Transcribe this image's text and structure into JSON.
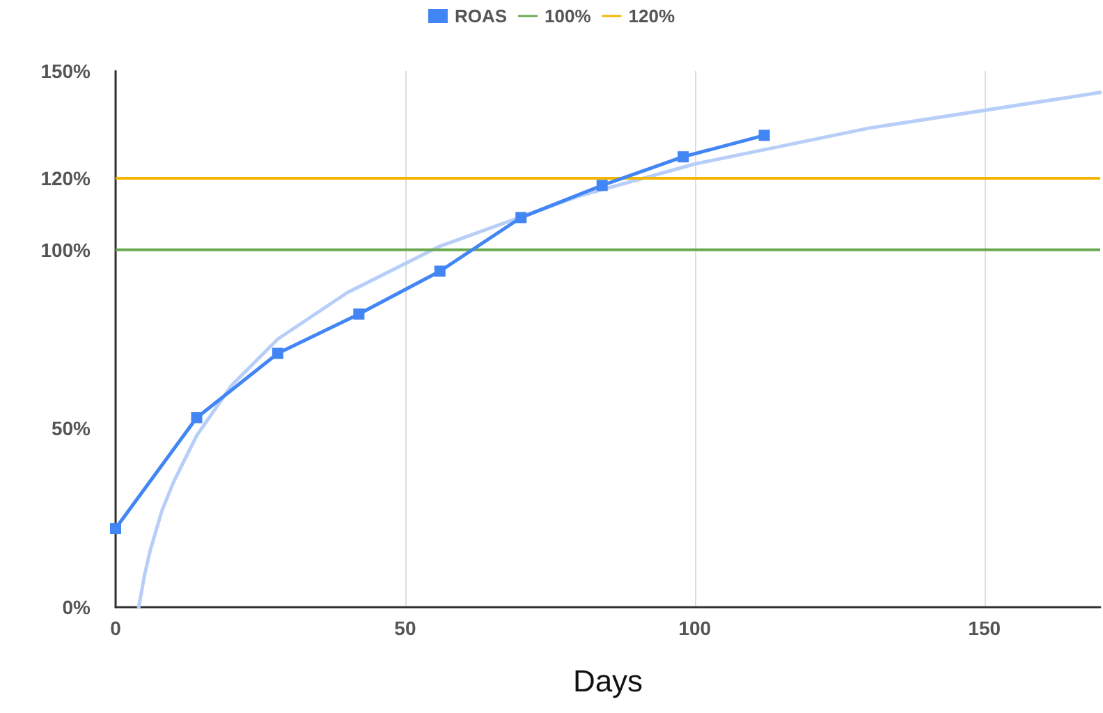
{
  "chart_data": {
    "type": "line",
    "xlabel": "Days",
    "x": [
      0,
      14,
      28,
      42,
      56,
      70,
      84,
      98,
      112
    ],
    "series": [
      {
        "name": "ROAS",
        "color": "#4285f4",
        "values": [
          22,
          53,
          71,
          82,
          94,
          109,
          118,
          126,
          132
        ],
        "marker": "square"
      },
      {
        "type": "line",
        "color": "#b7cff8",
        "marker": "none",
        "x": [
          4,
          5,
          6,
          8,
          10,
          14,
          20,
          28,
          40,
          56,
          80,
          100,
          130,
          170
        ],
        "values": [
          0,
          9,
          16,
          27,
          35,
          48,
          62,
          75,
          88,
          101,
          115,
          124,
          134,
          144
        ]
      }
    ],
    "ref_lines": [
      {
        "axis": "y",
        "value": 100,
        "label": "100%",
        "color": "#6aa84f"
      },
      {
        "axis": "y",
        "value": 120,
        "label": "120%",
        "color": "#f4b400"
      }
    ],
    "xlim": [
      0,
      170
    ],
    "xticks": [
      0,
      50,
      100,
      150
    ],
    "ylim": [
      0,
      150
    ],
    "yticks": [
      {
        "value": 0,
        "label": "0%"
      },
      {
        "value": 50,
        "label": "50%"
      },
      {
        "value": 100,
        "label": "100%"
      },
      {
        "value": 120,
        "label": "120%"
      },
      {
        "value": 150,
        "label": "150%"
      }
    ],
    "grid": "x",
    "legend": "top"
  }
}
